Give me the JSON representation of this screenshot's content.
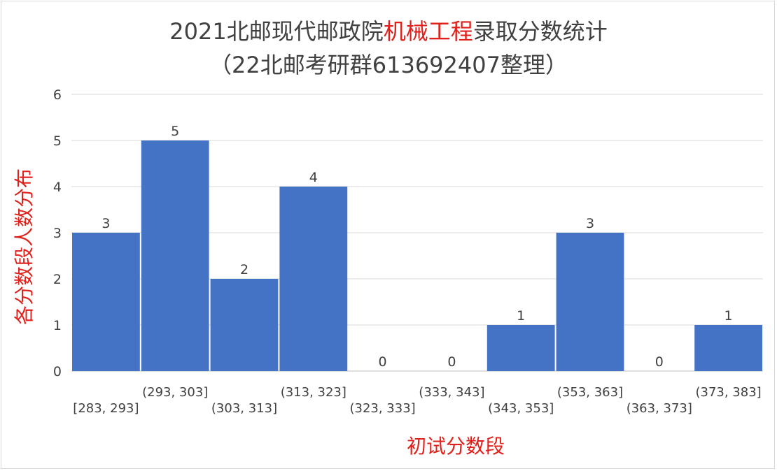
{
  "title": {
    "prefix": "2021北邮现代邮政院",
    "highlight": "机械工程",
    "suffix": "录取分数统计",
    "subtitle": "（22北邮考研群613692407整理）"
  },
  "colors": {
    "bar": "#4472c4",
    "highlight": "#e0201b",
    "text": "#404040",
    "grid": "#d9d9d9"
  },
  "chart_data": {
    "type": "bar",
    "title": "2021北邮现代邮政院机械工程录取分数统计",
    "subtitle": "（22北邮考研群613692407整理）",
    "xlabel": "初试分数段",
    "ylabel": "各分数段人数分布",
    "categories": [
      "[283, 293]",
      "(293, 303]",
      "(303, 313]",
      "(313, 323]",
      "(323, 333]",
      "(333, 343]",
      "(343, 353]",
      "(353, 363]",
      "(363, 373]",
      "(373, 383]"
    ],
    "values": [
      3,
      5,
      2,
      4,
      0,
      0,
      1,
      3,
      0,
      1
    ],
    "ylim": [
      0,
      6
    ],
    "yticks": [
      0,
      1,
      2,
      3,
      4,
      5,
      6
    ],
    "grid": true,
    "data_labels": true,
    "legend": "none"
  }
}
